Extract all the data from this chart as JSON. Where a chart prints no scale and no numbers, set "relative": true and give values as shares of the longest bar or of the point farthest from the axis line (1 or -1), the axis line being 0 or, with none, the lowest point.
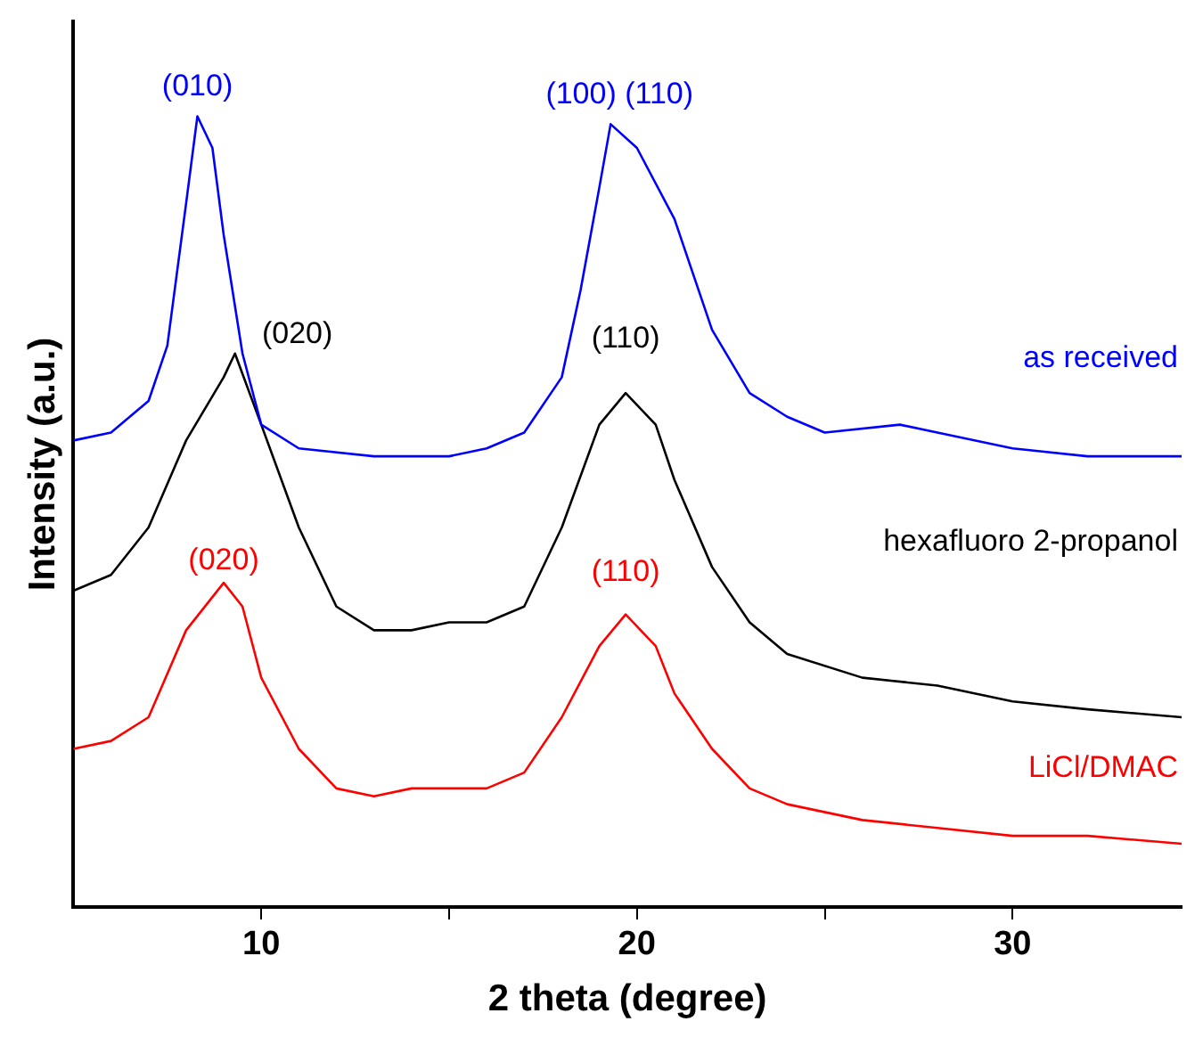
{
  "chart_data": {
    "type": "line",
    "relative": true,
    "xlabel": "2 theta (degree)",
    "ylabel": "Intensity (a.u.)",
    "xlim": [
      5,
      34.5
    ],
    "xticks": [
      10,
      {
        "value": 15,
        "label": null
      },
      20,
      {
        "value": 25,
        "label": null
      },
      30
    ],
    "tick_labels": "x",
    "grid": false,
    "legend": false,
    "marker": "none",
    "line_style": "solid",
    "series": [
      {
        "name": "as received",
        "color": "#0000ff",
        "x": [
          5,
          6,
          7,
          7.5,
          8,
          8.3,
          8.7,
          9,
          9.5,
          10,
          11,
          13,
          15,
          16,
          17,
          18,
          18.5,
          19,
          19.3,
          20,
          21,
          22,
          23,
          24,
          25,
          27,
          28,
          30,
          32,
          34.5
        ],
        "values": [
          0.59,
          0.6,
          0.64,
          0.71,
          0.89,
          1,
          0.96,
          0.85,
          0.7,
          0.61,
          0.58,
          0.57,
          0.57,
          0.58,
          0.6,
          0.67,
          0.78,
          0.91,
          0.99,
          0.96,
          0.87,
          0.73,
          0.65,
          0.62,
          0.6,
          0.61,
          0.6,
          0.58,
          0.57,
          0.57
        ]
      },
      {
        "name": "hexafluoro 2-propanol",
        "color": "#000000",
        "x": [
          5,
          6,
          7,
          8,
          9,
          9.3,
          10,
          11,
          12,
          13,
          14,
          15,
          16,
          17,
          18,
          19,
          19.7,
          20.5,
          21,
          22,
          23,
          24,
          26,
          28,
          30,
          32,
          34.5
        ],
        "values": [
          0.4,
          0.42,
          0.48,
          0.59,
          0.67,
          0.7,
          0.61,
          0.48,
          0.38,
          0.35,
          0.35,
          0.36,
          0.36,
          0.38,
          0.48,
          0.61,
          0.65,
          0.61,
          0.54,
          0.43,
          0.36,
          0.32,
          0.29,
          0.28,
          0.26,
          0.25,
          0.24
        ]
      },
      {
        "name": "LiCl/DMAC",
        "color": "#ff0000",
        "x": [
          5,
          6,
          7,
          8,
          9,
          9.5,
          10,
          11,
          12,
          13,
          14,
          15,
          16,
          17,
          18,
          19,
          19.7,
          20.5,
          21,
          22,
          23,
          24,
          26,
          28,
          30,
          32,
          34.5
        ],
        "values": [
          0.2,
          0.21,
          0.24,
          0.35,
          0.41,
          0.38,
          0.29,
          0.2,
          0.15,
          0.14,
          0.15,
          0.15,
          0.15,
          0.17,
          0.24,
          0.33,
          0.37,
          0.33,
          0.27,
          0.2,
          0.15,
          0.13,
          0.11,
          0.1,
          0.09,
          0.09,
          0.08
        ]
      }
    ],
    "annotations": [
      {
        "text": "(010)",
        "x": 8.3,
        "y": 1
      },
      {
        "text": "(100) (110)",
        "x": 19.3,
        "y": 0.99
      },
      {
        "text": "(020)",
        "x": 9.3,
        "y": 0.7
      },
      {
        "text": "(110)",
        "x": 19.7,
        "y": 0.65
      },
      {
        "text": "(020)",
        "x": 9,
        "y": 0.41
      },
      {
        "text": "(110)",
        "x": 19.7,
        "y": 0.37
      }
    ]
  }
}
